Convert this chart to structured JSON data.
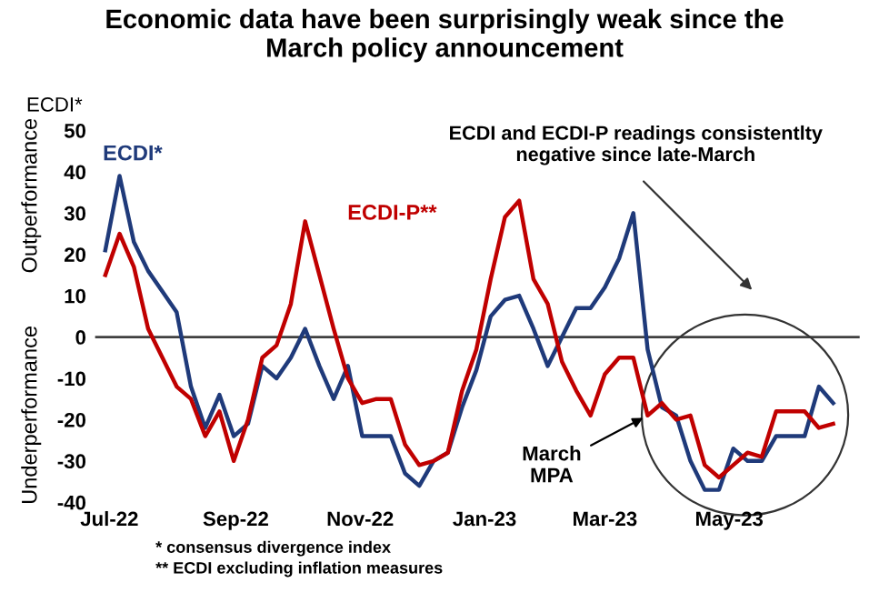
{
  "chart_data": {
    "type": "line",
    "title": "Economic data have been surprisingly weak since the\nMarch policy announcement",
    "ylabel": "ECDI*",
    "x": [
      "2022-06-29",
      "2022-07-06",
      "2022-07-13",
      "2022-07-20",
      "2022-07-27",
      "2022-08-03",
      "2022-08-10",
      "2022-08-17",
      "2022-08-24",
      "2022-08-31",
      "2022-09-07",
      "2022-09-14",
      "2022-09-21",
      "2022-09-28",
      "2022-10-05",
      "2022-10-12",
      "2022-10-19",
      "2022-10-26",
      "2022-11-02",
      "2022-11-09",
      "2022-11-16",
      "2022-11-23",
      "2022-11-30",
      "2022-12-07",
      "2022-12-14",
      "2022-12-21",
      "2022-12-28",
      "2023-01-04",
      "2023-01-11",
      "2023-01-18",
      "2023-01-25",
      "2023-02-01",
      "2023-02-08",
      "2023-02-15",
      "2023-02-22",
      "2023-03-01",
      "2023-03-08",
      "2023-03-15",
      "2023-03-22",
      "2023-03-29",
      "2023-04-05",
      "2023-04-12",
      "2023-04-19",
      "2023-04-26",
      "2023-05-03",
      "2023-05-10",
      "2023-05-17",
      "2023-05-24",
      "2023-05-31",
      "2023-06-07",
      "2023-06-14",
      "2023-06-21"
    ],
    "series": [
      {
        "name": "ECDI*",
        "color": "#1f3a7a",
        "values": [
          21,
          39,
          23,
          16,
          11,
          6,
          -12,
          -22,
          -14,
          -24,
          -21,
          -7,
          -10,
          -5,
          2,
          -7,
          -15,
          -7,
          -24,
          -24,
          -24,
          -33,
          -36,
          -30,
          -28,
          -17,
          -8,
          5,
          9,
          10,
          2,
          -7,
          0,
          7,
          7,
          12,
          19,
          30,
          -3,
          -17,
          -19,
          -30,
          -37,
          -37,
          -27,
          -30,
          -30,
          -24,
          -24,
          -24,
          -12,
          -16
        ]
      },
      {
        "name": "ECDI-P**",
        "color": "#c00000",
        "values": [
          15,
          25,
          17,
          2,
          -5,
          -12,
          -15,
          -24,
          -18,
          -30,
          -20,
          -5,
          -2,
          8,
          28,
          15,
          2,
          -10,
          -16,
          -15,
          -15,
          -26,
          -31,
          -30,
          -28,
          -13,
          -3,
          14,
          29,
          33,
          14,
          8,
          -6,
          -13,
          -19,
          -9,
          -5,
          -5,
          -19,
          -16,
          -20,
          -19,
          -31,
          -34,
          -31,
          -28,
          -29,
          -18,
          -18,
          -18,
          -22,
          -21
        ]
      }
    ],
    "xlim": [
      "2022-06-24",
      "2023-07-04"
    ],
    "xticks": [
      {
        "value": "2022-07-01",
        "label": "Jul-22"
      },
      {
        "value": "2022-09-01",
        "label": "Sep-22"
      },
      {
        "value": "2022-11-01",
        "label": "Nov-22"
      },
      {
        "value": "2023-01-01",
        "label": "Jan-23"
      },
      {
        "value": "2023-03-01",
        "label": "Mar-23"
      },
      {
        "value": "2023-05-01",
        "label": "May-23"
      }
    ],
    "ylim": [
      -40,
      50
    ],
    "yticks": [
      -40,
      -30,
      -20,
      -10,
      0,
      10,
      20,
      30,
      40,
      50
    ],
    "ref_lines": [
      {
        "axis": "y",
        "value": 0,
        "color": "#404040"
      }
    ],
    "annotations": [
      "Outperformance",
      "Underperformance",
      "ECDI and ECDI-P readings consistentlty\nnegative since late-March",
      {
        "text": "March\nMPA",
        "x": "2023-03-22",
        "y": -19
      },
      "* consensus divergence index",
      "** ECDI excluding inflation measures"
    ],
    "grid": false,
    "legend": false,
    "marker": "none",
    "line_style": "solid"
  }
}
